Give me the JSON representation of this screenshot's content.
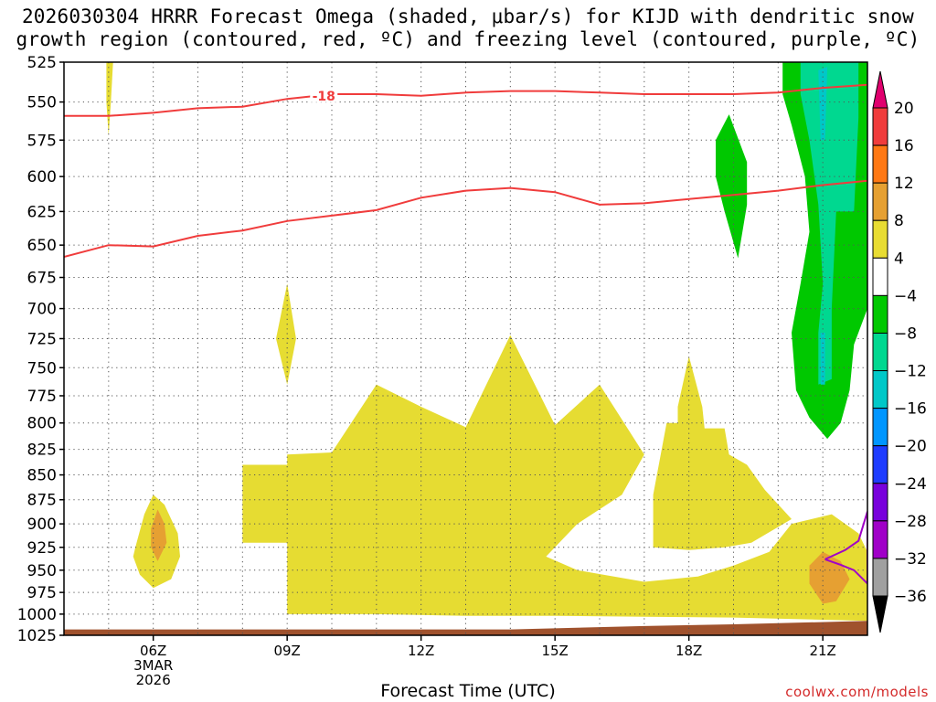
{
  "title": {
    "line1": "2026030304 HRRR Forecast Omega (shaded, μbar/s) for KIJD with dendritic snow",
    "line2": "growth region (contoured, red, ºC) and freezing level (contoured, purple, ºC)"
  },
  "credit": "coolwx.com/models",
  "chart_data": {
    "type": "heatmap",
    "xlabel": "Forecast Time (UTC)",
    "x_ticks": [
      {
        "hour": 6,
        "lines": [
          "06Z",
          "3MAR",
          "2026"
        ]
      },
      {
        "hour": 9,
        "lines": [
          "09Z"
        ]
      },
      {
        "hour": 12,
        "lines": [
          "12Z"
        ]
      },
      {
        "hour": 15,
        "lines": [
          "15Z"
        ]
      },
      {
        "hour": 18,
        "lines": [
          "18Z"
        ]
      },
      {
        "hour": 21,
        "lines": [
          "21Z"
        ]
      }
    ],
    "x_range_hours": [
      4,
      22
    ],
    "y_ticks": [
      525,
      550,
      575,
      600,
      625,
      650,
      675,
      700,
      725,
      750,
      775,
      800,
      825,
      850,
      875,
      900,
      925,
      950,
      975,
      1000,
      1025
    ],
    "y_range_hpa": [
      525,
      1025
    ],
    "colorbar": {
      "labels": [
        "20",
        "16",
        "12",
        "8",
        "4",
        "−4",
        "−8",
        "−12",
        "−16",
        "−20",
        "−24",
        "−28",
        "−32",
        "−36"
      ],
      "top_color": "#e0006e",
      "bottom_color": "#000000",
      "band_colors": [
        "#f03c3c",
        "#ff7814",
        "#e6a032",
        "#e8dc32",
        "#ffffff",
        "#00c800",
        "#00d890",
        "#00c8c8",
        "#0096ff",
        "#1e3cff",
        "#7800dc",
        "#a000c8",
        "#a0a0a0"
      ]
    },
    "shading_colors": {
      "yellow": "#e6dc32",
      "orange": "#e6a032",
      "green": "#00c800",
      "teal": "#00d890",
      "cyan": "#00c8c8",
      "ground": "#a0522d"
    },
    "contours": {
      "dendritic_upper": {
        "color": "#f03c3c",
        "label": "-18",
        "label_hour": 9.8,
        "points": [
          [
            4,
            559
          ],
          [
            5,
            559
          ],
          [
            6,
            557
          ],
          [
            7,
            554
          ],
          [
            8,
            553
          ],
          [
            9,
            548
          ],
          [
            10,
            545
          ],
          [
            11,
            545
          ],
          [
            12,
            546
          ],
          [
            13,
            544
          ],
          [
            14,
            543
          ],
          [
            15,
            543
          ],
          [
            16,
            544
          ],
          [
            17,
            545
          ],
          [
            18,
            545
          ],
          [
            19,
            545
          ],
          [
            20,
            544
          ],
          [
            21,
            541
          ],
          [
            22,
            539
          ]
        ]
      },
      "dendritic_lower": {
        "color": "#f03c3c",
        "points": [
          [
            4,
            659
          ],
          [
            5,
            650
          ],
          [
            6,
            651
          ],
          [
            7,
            643
          ],
          [
            8,
            639
          ],
          [
            9,
            632
          ],
          [
            10,
            628
          ],
          [
            11,
            624
          ],
          [
            12,
            615
          ],
          [
            13,
            610
          ],
          [
            14,
            608
          ],
          [
            15,
            611
          ],
          [
            16,
            620
          ],
          [
            17,
            619
          ],
          [
            18,
            616
          ],
          [
            19,
            613
          ],
          [
            20,
            610
          ],
          [
            21,
            606
          ],
          [
            22,
            603
          ]
        ]
      },
      "freezing": {
        "color": "#a000c8",
        "points": [
          [
            21.05,
            938
          ],
          [
            21.5,
            928
          ],
          [
            21.8,
            918
          ],
          [
            22,
            887
          ],
          [
            22,
            965
          ],
          [
            21.7,
            950
          ],
          [
            21.4,
            944
          ],
          [
            21.05,
            938
          ]
        ]
      }
    }
  }
}
